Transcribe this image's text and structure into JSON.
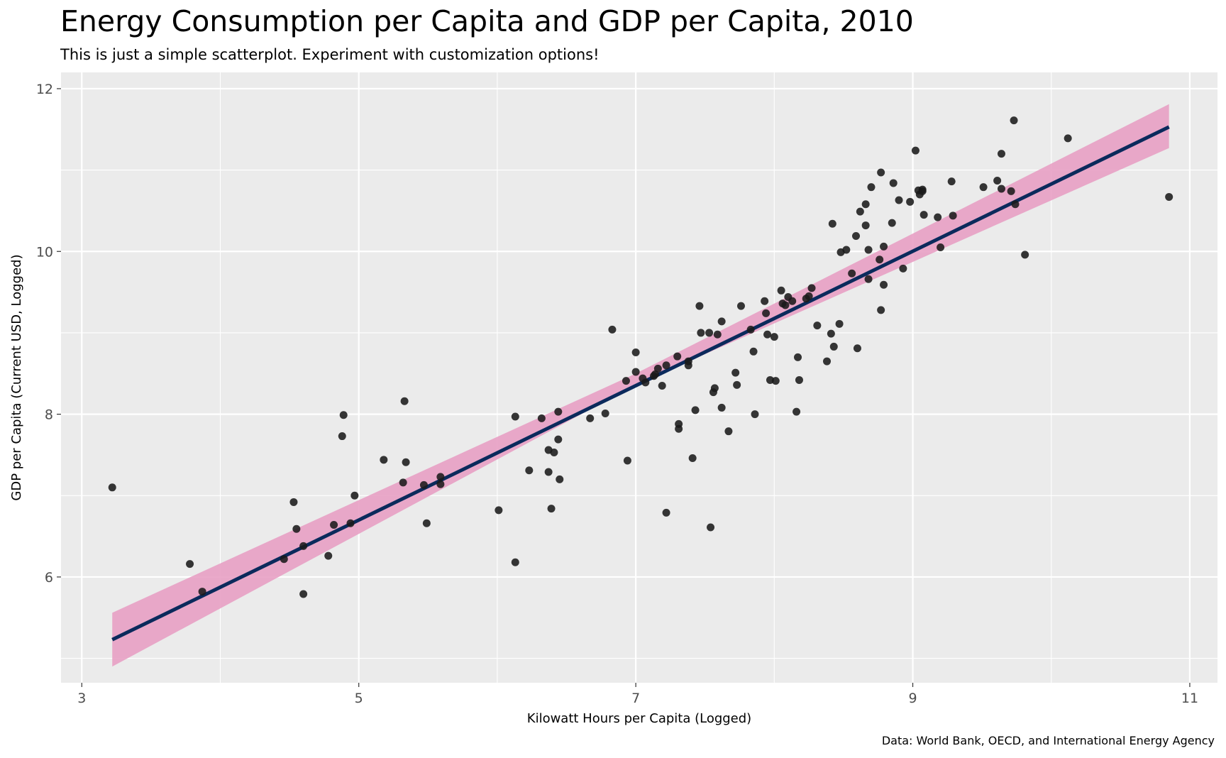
{
  "chart_data": {
    "type": "scatter",
    "title": "Energy Consumption per Capita and GDP per Capita, 2010",
    "subtitle": "This is just a simple scatterplot. Experiment with customization options!",
    "xlabel": "Kilowatt Hours per Capita (Logged)",
    "ylabel": "GDP per Capita (Current USD, Logged)",
    "caption": "Data: World Bank, OECD, and International Energy Agency",
    "xlim": [
      2.85,
      11.2
    ],
    "ylim": [
      4.7,
      12.2
    ],
    "x_ticks": [
      3,
      5,
      7,
      9,
      11
    ],
    "y_ticks": [
      6,
      8,
      10,
      12
    ],
    "x_tick_labels": [
      "3",
      "5",
      "7",
      "9",
      "11"
    ],
    "y_tick_labels": [
      "6",
      "8",
      "10",
      "12"
    ],
    "grid": true,
    "colors": {
      "panel": "#EBEBEB",
      "grid": "#FFFFFF",
      "points": "#1A1A1A",
      "fit_line": "#0B2A5C",
      "confidence_band": "#E8A0C4",
      "axis_text": "#4D4D4D"
    },
    "fit_line": {
      "x": [
        3.22,
        10.85
      ],
      "y": [
        5.23,
        11.53
      ]
    },
    "confidence_band": {
      "x": [
        3.22,
        7.0,
        10.85
      ],
      "lower": [
        4.9,
        8.36,
        11.27
      ],
      "upper": [
        5.56,
        8.5,
        11.81
      ]
    },
    "points": [
      [
        3.22,
        7.1
      ],
      [
        3.78,
        6.16
      ],
      [
        3.87,
        5.82
      ],
      [
        4.46,
        6.22
      ],
      [
        4.53,
        6.92
      ],
      [
        4.55,
        6.59
      ],
      [
        4.6,
        6.38
      ],
      [
        4.6,
        5.79
      ],
      [
        4.78,
        6.26
      ],
      [
        4.82,
        6.64
      ],
      [
        4.88,
        7.73
      ],
      [
        4.89,
        7.99
      ],
      [
        4.94,
        6.66
      ],
      [
        4.97,
        7.0
      ],
      [
        5.18,
        7.44
      ],
      [
        5.32,
        7.16
      ],
      [
        5.33,
        8.16
      ],
      [
        5.34,
        7.41
      ],
      [
        5.47,
        7.13
      ],
      [
        5.49,
        6.66
      ],
      [
        5.59,
        7.23
      ],
      [
        5.59,
        7.14
      ],
      [
        6.01,
        6.82
      ],
      [
        6.13,
        7.97
      ],
      [
        6.13,
        6.18
      ],
      [
        6.23,
        7.31
      ],
      [
        6.32,
        7.95
      ],
      [
        6.37,
        7.56
      ],
      [
        6.37,
        7.29
      ],
      [
        6.39,
        6.84
      ],
      [
        6.41,
        7.53
      ],
      [
        6.44,
        8.03
      ],
      [
        6.44,
        7.69
      ],
      [
        6.45,
        7.2
      ],
      [
        6.67,
        7.95
      ],
      [
        6.78,
        8.01
      ],
      [
        6.83,
        9.04
      ],
      [
        6.93,
        8.41
      ],
      [
        6.94,
        7.43
      ],
      [
        7.0,
        8.76
      ],
      [
        7.0,
        8.52
      ],
      [
        7.05,
        8.44
      ],
      [
        7.07,
        8.39
      ],
      [
        7.13,
        8.47
      ],
      [
        7.14,
        8.49
      ],
      [
        7.16,
        8.56
      ],
      [
        7.19,
        8.35
      ],
      [
        7.22,
        8.6
      ],
      [
        7.22,
        6.79
      ],
      [
        7.3,
        8.71
      ],
      [
        7.31,
        7.88
      ],
      [
        7.31,
        7.82
      ],
      [
        7.38,
        8.65
      ],
      [
        7.38,
        8.6
      ],
      [
        7.41,
        7.46
      ],
      [
        7.43,
        8.05
      ],
      [
        7.46,
        9.33
      ],
      [
        7.47,
        9.0
      ],
      [
        7.53,
        9.0
      ],
      [
        7.54,
        6.61
      ],
      [
        7.56,
        8.27
      ],
      [
        7.57,
        8.32
      ],
      [
        7.59,
        8.98
      ],
      [
        7.62,
        9.14
      ],
      [
        7.62,
        8.08
      ],
      [
        7.67,
        7.79
      ],
      [
        7.72,
        8.51
      ],
      [
        7.73,
        8.36
      ],
      [
        7.76,
        9.33
      ],
      [
        7.83,
        9.04
      ],
      [
        7.85,
        8.77
      ],
      [
        7.86,
        8.0
      ],
      [
        7.93,
        9.39
      ],
      [
        7.94,
        9.24
      ],
      [
        7.95,
        8.98
      ],
      [
        7.97,
        8.42
      ],
      [
        8.0,
        8.95
      ],
      [
        8.01,
        8.41
      ],
      [
        8.05,
        9.52
      ],
      [
        8.06,
        9.36
      ],
      [
        8.08,
        9.34
      ],
      [
        8.1,
        9.44
      ],
      [
        8.13,
        9.39
      ],
      [
        8.16,
        8.03
      ],
      [
        8.17,
        8.7
      ],
      [
        8.18,
        8.42
      ],
      [
        8.23,
        9.42
      ],
      [
        8.25,
        9.45
      ],
      [
        8.27,
        9.55
      ],
      [
        8.31,
        9.09
      ],
      [
        8.38,
        8.65
      ],
      [
        8.41,
        8.99
      ],
      [
        8.42,
        10.34
      ],
      [
        8.43,
        8.83
      ],
      [
        8.47,
        9.11
      ],
      [
        8.48,
        9.99
      ],
      [
        8.52,
        10.02
      ],
      [
        8.56,
        9.73
      ],
      [
        8.59,
        10.19
      ],
      [
        8.6,
        8.81
      ],
      [
        8.62,
        10.49
      ],
      [
        8.66,
        10.32
      ],
      [
        8.66,
        10.58
      ],
      [
        8.68,
        10.02
      ],
      [
        8.68,
        9.66
      ],
      [
        8.7,
        10.79
      ],
      [
        8.76,
        9.9
      ],
      [
        8.77,
        10.97
      ],
      [
        8.77,
        9.28
      ],
      [
        8.79,
        10.06
      ],
      [
        8.79,
        9.59
      ],
      [
        8.85,
        10.35
      ],
      [
        8.86,
        10.84
      ],
      [
        8.9,
        10.63
      ],
      [
        8.93,
        9.79
      ],
      [
        8.98,
        10.61
      ],
      [
        9.02,
        11.24
      ],
      [
        9.04,
        10.75
      ],
      [
        9.05,
        10.7
      ],
      [
        9.07,
        10.76
      ],
      [
        9.08,
        10.45
      ],
      [
        9.07,
        10.74
      ],
      [
        9.18,
        10.42
      ],
      [
        9.2,
        10.05
      ],
      [
        9.28,
        10.86
      ],
      [
        9.29,
        10.44
      ],
      [
        9.51,
        10.79
      ],
      [
        9.61,
        10.87
      ],
      [
        9.64,
        11.2
      ],
      [
        9.64,
        10.77
      ],
      [
        9.71,
        10.74
      ],
      [
        9.73,
        11.61
      ],
      [
        9.74,
        10.58
      ],
      [
        9.81,
        9.96
      ],
      [
        10.12,
        11.39
      ],
      [
        10.85,
        10.67
      ]
    ]
  }
}
